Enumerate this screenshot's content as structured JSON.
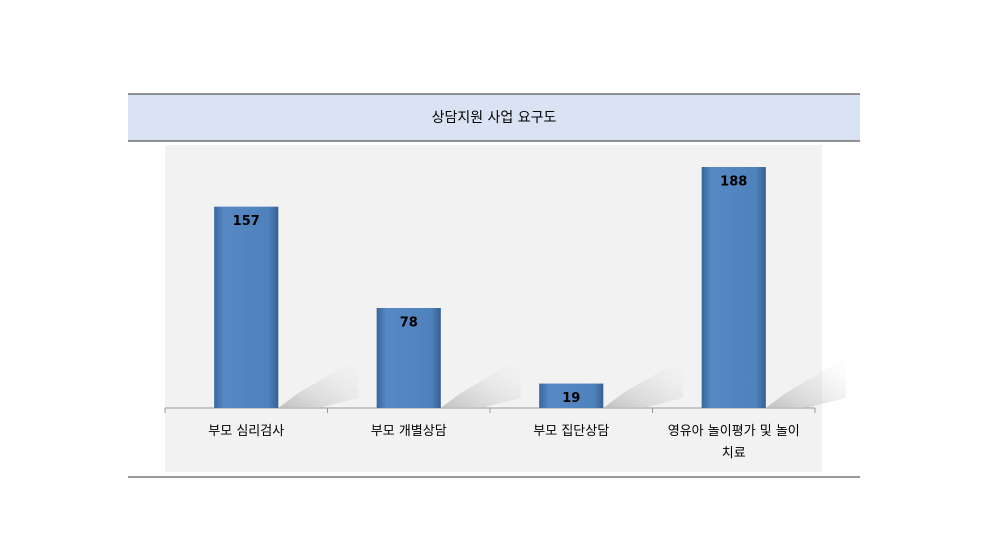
{
  "chart_data": {
    "type": "bar",
    "title": "상담지원 사업 요구도",
    "categories": [
      "부모 심리검사",
      "부모 개별상담",
      "부모 집단상담",
      "영유아 놀이평가 및 놀이치료"
    ],
    "values": [
      157,
      78,
      19,
      188
    ],
    "color": "#4f81bd"
  }
}
